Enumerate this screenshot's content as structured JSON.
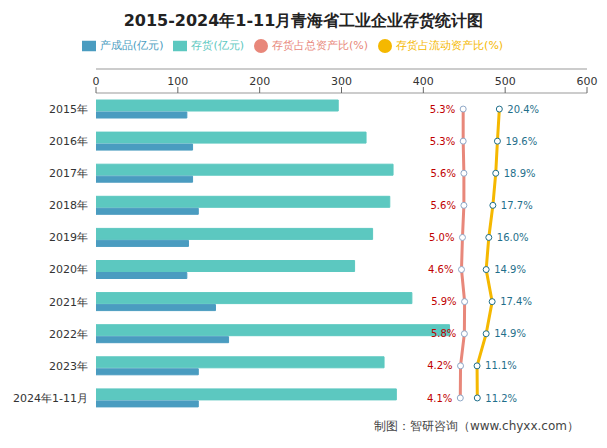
{
  "chart_data": {
    "type": "bar",
    "orientation": "horizontal",
    "title": "2015-2024年1-11月青海省工业企业存货统计图",
    "source": "制图：智研咨询（www.chyxx.com）",
    "categories": [
      "2015年",
      "2016年",
      "2017年",
      "2018年",
      "2019年",
      "2020年",
      "2021年",
      "2022年",
      "2023年",
      "2024年1-11月"
    ],
    "series": [
      {
        "name": "存货(亿元)",
        "type": "bar",
        "color": "#5cc8c0",
        "values": [
          296,
          330,
          363,
          359,
          338,
          316,
          386,
          432,
          352,
          367
        ]
      },
      {
        "name": "产成品(亿元)",
        "type": "bar",
        "color": "#4a9cc0",
        "values": [
          111,
          118,
          118,
          125,
          113,
          111,
          146,
          162,
          125,
          125
        ]
      },
      {
        "name": "存货占流动资产比(%)",
        "type": "line",
        "axis": "x2",
        "color": "#f5b800",
        "marker": "circle",
        "data_labels": true,
        "values": [
          20.4,
          19.6,
          18.9,
          17.7,
          16.0,
          14.9,
          17.4,
          14.9,
          11.1,
          11.2
        ],
        "value_labels": [
          "20.4%",
          "19.6%",
          "18.9%",
          "17.7%",
          "16.0%",
          "14.9%",
          "17.4%",
          "14.9%",
          "11.1%",
          "11.2%"
        ]
      },
      {
        "name": "存货占总资产比(%)",
        "type": "line",
        "axis": "x2",
        "color": "#e8877a",
        "marker": "circle",
        "data_labels": true,
        "values": [
          5.3,
          5.3,
          5.6,
          5.6,
          5.0,
          4.6,
          5.9,
          5.8,
          4.2,
          4.1
        ],
        "value_labels": [
          "5.3%",
          "5.3%",
          "5.6%",
          "5.6%",
          "5.0%",
          "4.6%",
          "5.9%",
          "5.8%",
          "4.2%",
          "4.1%"
        ]
      }
    ],
    "xlim": [
      0,
      600
    ],
    "xticks": [
      0,
      100,
      200,
      300,
      400,
      500,
      600
    ],
    "x2lim": [
      -148,
      57
    ],
    "x2ticks": [],
    "tick_labels": "x",
    "legend": "top",
    "grid": false
  }
}
